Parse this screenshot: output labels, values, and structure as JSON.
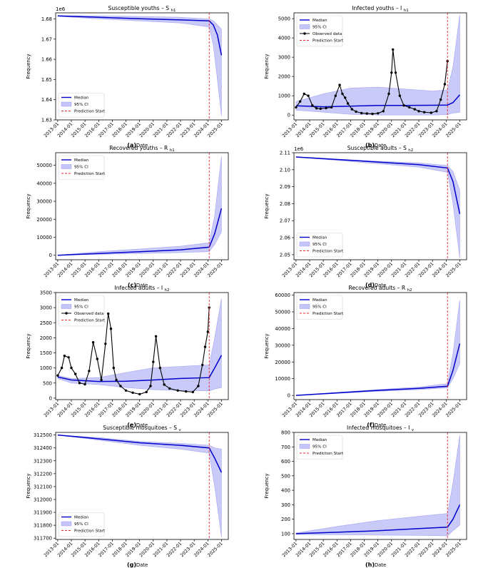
{
  "figure": {
    "x_tick_labels": [
      "2013-01",
      "2014-01",
      "2015-01",
      "2016-01",
      "2017-01",
      "2018-01",
      "2019-01",
      "2020-01",
      "2021-01",
      "2022-01",
      "2023-01",
      "2024-01",
      "2025-01"
    ],
    "xlabel": "Date",
    "ylabel": "Frequency",
    "legend": {
      "median": "Median",
      "ci": "95% CI",
      "observed": "Observed data",
      "prediction": "Prediction Start"
    },
    "colors": {
      "median": "#0000cc",
      "ci_fill": "#c5c5f8",
      "ci_edge": "#9c9cf0",
      "observed": "#000000",
      "prediction": "#e8262d",
      "axes": "#000000"
    }
  },
  "chart_data": [
    {
      "panel": "(a)",
      "type": "line",
      "title": "Susceptible youths – S",
      "title_sub": "h1",
      "offset": "1e6",
      "ylim": [
        1.63,
        1.683
      ],
      "yticks": [
        1.63,
        1.64,
        1.65,
        1.66,
        1.67,
        1.68
      ],
      "ytick_labels": [
        "1.63",
        "1.64",
        "1.65",
        "1.66",
        "1.67",
        "1.68"
      ],
      "prediction_start": 2024.1,
      "legend_position": "lower-left",
      "x": [
        2013.0,
        2016.0,
        2019.0,
        2022.0,
        2024.1,
        2024.4,
        2024.7,
        2025.0
      ],
      "median": [
        1.6815,
        1.6808,
        1.6801,
        1.6795,
        1.679,
        1.677,
        1.672,
        1.662
      ],
      "lower": [
        1.6813,
        1.68,
        1.679,
        1.678,
        1.676,
        1.667,
        1.65,
        1.632
      ],
      "upper": [
        1.6816,
        1.6815,
        1.6812,
        1.6808,
        1.68,
        1.679,
        1.677,
        1.675
      ]
    },
    {
      "panel": "(b)",
      "type": "line",
      "title": "Infected youths – I",
      "title_sub": "h1",
      "offset": "",
      "ylim": [
        -250,
        5300
      ],
      "yticks": [
        0,
        1000,
        2000,
        3000,
        4000,
        5000
      ],
      "ytick_labels": [
        "0",
        "1000",
        "2000",
        "3000",
        "4000",
        "5000"
      ],
      "prediction_start": 2024.1,
      "legend_position": "upper-left",
      "x": [
        2013.0,
        2015.0,
        2017.0,
        2019.0,
        2021.0,
        2023.0,
        2024.1,
        2024.5,
        2025.0
      ],
      "median": [
        480,
        430,
        460,
        500,
        500,
        510,
        520,
        650,
        1050
      ],
      "lower": [
        250,
        150,
        40,
        0,
        0,
        0,
        20,
        100,
        150
      ],
      "upper": [
        700,
        1100,
        1400,
        1450,
        1350,
        1250,
        1300,
        2500,
        5200
      ],
      "observed": {
        "x": [
          2013.0,
          2013.3,
          2013.6,
          2013.9,
          2014.2,
          2014.5,
          2014.8,
          2015.2,
          2015.6,
          2015.9,
          2016.2,
          2016.4,
          2016.6,
          2016.8,
          2017.1,
          2017.4,
          2017.8,
          2018.2,
          2018.6,
          2019.0,
          2019.4,
          2019.8,
          2020.0,
          2020.1,
          2020.3,
          2020.6,
          2020.9,
          2021.3,
          2021.7,
          2022.0,
          2022.4,
          2022.9,
          2023.3,
          2023.6,
          2023.9,
          2024.1
        ],
        "y": [
          400,
          700,
          1100,
          1000,
          500,
          350,
          330,
          360,
          400,
          1000,
          1560,
          1100,
          900,
          600,
          300,
          180,
          100,
          80,
          60,
          90,
          200,
          1100,
          2200,
          3400,
          2200,
          1000,
          500,
          400,
          300,
          200,
          150,
          120,
          200,
          800,
          1600,
          2800
        ]
      }
    },
    {
      "panel": "(c)",
      "type": "line",
      "title": "Recovered youths – R",
      "title_sub": "h1",
      "offset": "",
      "ylim": [
        -2500,
        57000
      ],
      "yticks": [
        0,
        10000,
        20000,
        30000,
        40000,
        50000
      ],
      "ytick_labels": [
        "0",
        "10000",
        "20000",
        "30000",
        "40000",
        "50000"
      ],
      "prediction_start": 2024.1,
      "legend_position": "upper-left",
      "x": [
        2013.0,
        2016.0,
        2019.0,
        2022.0,
        2024.1,
        2024.5,
        2025.0
      ],
      "median": [
        0,
        1000,
        2000,
        3000,
        4500,
        12000,
        26000
      ],
      "lower": [
        0,
        500,
        1000,
        1500,
        2000,
        6000,
        13000
      ],
      "upper": [
        0,
        2000,
        3500,
        5000,
        7000,
        22000,
        55000
      ]
    },
    {
      "panel": "(d)",
      "type": "line",
      "title": "Susceptible adults – S",
      "title_sub": "h2",
      "offset": "1e6",
      "ylim": [
        2.047,
        2.11
      ],
      "yticks": [
        2.05,
        2.06,
        2.07,
        2.08,
        2.09,
        2.1,
        2.11
      ],
      "ytick_labels": [
        "2.05",
        "2.06",
        "2.07",
        "2.08",
        "2.09",
        "2.10",
        "2.11"
      ],
      "prediction_start": 2024.1,
      "legend_position": "lower-left",
      "x": [
        2013.0,
        2016.0,
        2019.0,
        2022.0,
        2024.1,
        2024.5,
        2025.0
      ],
      "median": [
        2.1075,
        2.106,
        2.1045,
        2.103,
        2.101,
        2.093,
        2.074
      ],
      "lower": [
        2.1074,
        2.1055,
        2.1035,
        2.1015,
        2.0985,
        2.08,
        2.048
      ],
      "upper": [
        2.1076,
        2.1062,
        2.105,
        2.104,
        2.1025,
        2.099,
        2.088
      ]
    },
    {
      "panel": "(e)",
      "type": "line",
      "title": "Infected adults – I",
      "title_sub": "h2",
      "offset": "",
      "ylim": [
        -50,
        3500
      ],
      "yticks": [
        0,
        500,
        1000,
        1500,
        2000,
        2500,
        3000,
        3500
      ],
      "ytick_labels": [
        "0",
        "500",
        "1000",
        "1500",
        "2000",
        "2500",
        "3000",
        "3500"
      ],
      "prediction_start": 2024.1,
      "legend_position": "upper-left",
      "x": [
        2013.0,
        2014.0,
        2016.0,
        2018.0,
        2020.0,
        2022.0,
        2024.1,
        2024.5,
        2025.0
      ],
      "median": [
        700,
        600,
        550,
        560,
        600,
        650,
        680,
        1000,
        1420
      ],
      "lower": [
        650,
        500,
        450,
        350,
        280,
        250,
        240,
        300,
        350
      ],
      "upper": [
        750,
        650,
        680,
        850,
        1000,
        1050,
        1100,
        2000,
        3300
      ],
      "observed": {
        "x": [
          2013.0,
          2013.3,
          2013.5,
          2013.8,
          2014.0,
          2014.3,
          2014.6,
          2015.0,
          2015.3,
          2015.6,
          2015.9,
          2016.2,
          2016.5,
          2016.7,
          2016.9,
          2017.1,
          2017.3,
          2017.6,
          2018.0,
          2018.5,
          2019.0,
          2019.5,
          2019.8,
          2020.0,
          2020.2,
          2020.5,
          2020.8,
          2021.2,
          2021.8,
          2022.4,
          2022.9,
          2023.3,
          2023.6,
          2023.8,
          2024.0,
          2024.1
        ],
        "y": [
          750,
          1000,
          1400,
          1350,
          1000,
          800,
          500,
          460,
          900,
          1850,
          1300,
          600,
          1800,
          2800,
          2300,
          1000,
          600,
          400,
          250,
          180,
          130,
          200,
          400,
          1200,
          2050,
          1000,
          450,
          320,
          250,
          220,
          200,
          400,
          1100,
          1700,
          2200,
          3000
        ]
      }
    },
    {
      "panel": "(f)",
      "type": "line",
      "title": "Recovered adults – R",
      "title_sub": "h2",
      "offset": "",
      "ylim": [
        -2500,
        61500
      ],
      "yticks": [
        0,
        10000,
        20000,
        30000,
        40000,
        50000,
        60000
      ],
      "ytick_labels": [
        "0",
        "10000",
        "20000",
        "30000",
        "40000",
        "50000",
        "60000"
      ],
      "prediction_start": 2024.1,
      "legend_position": "upper-left",
      "x": [
        2013.0,
        2016.0,
        2019.0,
        2022.0,
        2024.1,
        2024.5,
        2025.0
      ],
      "median": [
        0,
        1500,
        3000,
        4200,
        5500,
        15000,
        31000
      ],
      "lower": [
        0,
        1200,
        2500,
        3500,
        4500,
        10000,
        19000
      ],
      "upper": [
        0,
        1800,
        3500,
        5000,
        7000,
        25000,
        57000
      ]
    },
    {
      "panel": "(g)",
      "type": "line",
      "title": "Susceptible mosquitoes – S",
      "title_sub": "v",
      "offset": "",
      "ylim": [
        311690,
        312520
      ],
      "yticks": [
        311700,
        311800,
        311900,
        312000,
        312100,
        312200,
        312300,
        312400,
        312500
      ],
      "ytick_labels": [
        "311700",
        "311800",
        "311900",
        "312000",
        "312100",
        "312200",
        "312300",
        "312400",
        "312500"
      ],
      "prediction_start": 2024.1,
      "legend_position": "lower-left",
      "x": [
        2013.0,
        2016.0,
        2019.0,
        2022.0,
        2024.1,
        2024.5,
        2025.0
      ],
      "median": [
        312500,
        312470,
        312440,
        312420,
        312400,
        312320,
        312210
      ],
      "lower": [
        312500,
        312460,
        312420,
        312390,
        312360,
        312100,
        311710
      ],
      "upper": [
        312500,
        312480,
        312450,
        312435,
        312420,
        312400,
        312390
      ]
    },
    {
      "panel": "(h)",
      "type": "line",
      "title": "Infected mosquitoes – I",
      "title_sub": "v",
      "offset": "",
      "ylim": [
        60,
        800
      ],
      "yticks": [
        100,
        200,
        300,
        400,
        500,
        600,
        700,
        800
      ],
      "ytick_labels": [
        "100",
        "200",
        "300",
        "400",
        "500",
        "600",
        "700",
        "800"
      ],
      "prediction_start": 2024.1,
      "legend_position": "upper-left",
      "x": [
        2013.0,
        2016.0,
        2019.0,
        2022.0,
        2024.1,
        2024.5,
        2025.0
      ],
      "median": [
        100,
        110,
        120,
        135,
        145,
        200,
        300
      ],
      "lower": [
        95,
        92,
        90,
        88,
        85,
        120,
        160
      ],
      "upper": [
        105,
        150,
        190,
        220,
        240,
        450,
        780
      ]
    }
  ]
}
